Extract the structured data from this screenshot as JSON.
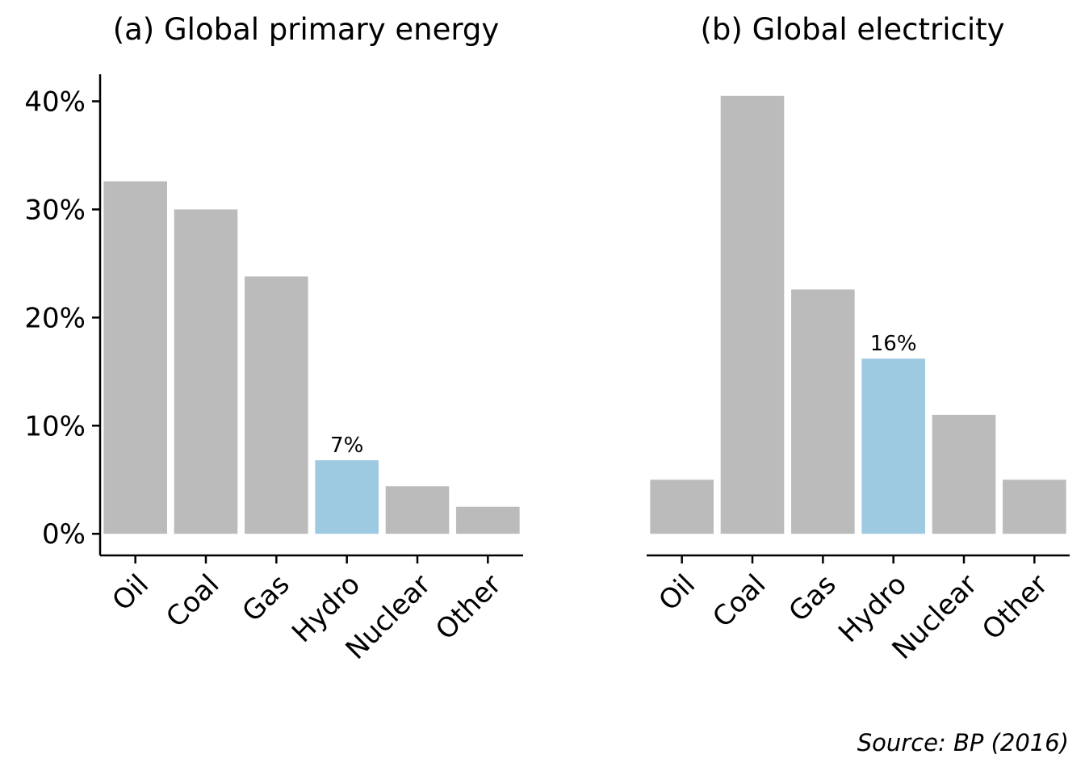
{
  "chart_data": [
    {
      "type": "bar",
      "title": "(a) Global primary energy",
      "categories": [
        "Oil",
        "Coal",
        "Gas",
        "Hydro",
        "Nuclear",
        "Other"
      ],
      "values": [
        32.6,
        30.0,
        23.8,
        6.8,
        4.4,
        2.5
      ],
      "highlight_index": 3,
      "highlight_label": "7%",
      "ylim": [
        -2,
        42.5
      ],
      "yticks": [
        0,
        10,
        20,
        30,
        40
      ],
      "ytick_labels": [
        "0%",
        "10%",
        "20%",
        "30%",
        "40%"
      ],
      "show_y_axis": true,
      "grid": false
    },
    {
      "type": "bar",
      "title": "(b) Global electricity",
      "categories": [
        "Oil",
        "Coal",
        "Gas",
        "Hydro",
        "Nuclear",
        "Other"
      ],
      "values": [
        5.0,
        40.5,
        22.6,
        16.2,
        11.0,
        5.0
      ],
      "highlight_index": 3,
      "highlight_label": "16%",
      "ylim": [
        -2,
        42.5
      ],
      "show_y_axis": false,
      "grid": false
    }
  ],
  "colors": {
    "bar": "#bbbbbb",
    "highlight": "#9ecae1",
    "axis": "#000000"
  },
  "source_note": "Source: BP (2016)"
}
